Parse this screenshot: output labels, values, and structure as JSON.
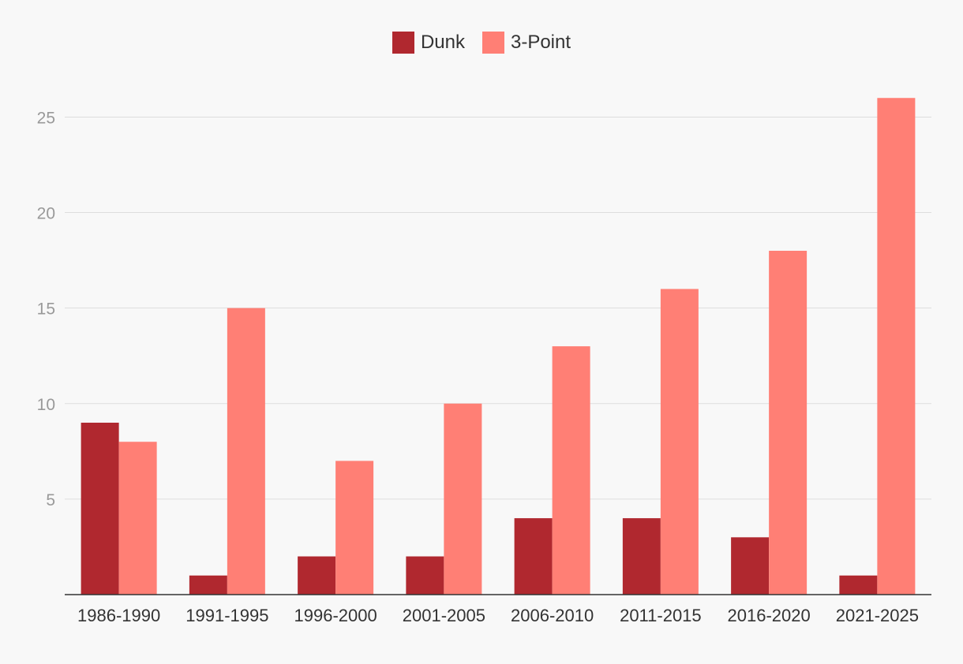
{
  "chart_data": {
    "type": "bar",
    "title": "",
    "xlabel": "",
    "ylabel": "",
    "categories": [
      "1986-1990",
      "1991-1995",
      "1996-2000",
      "2001-2005",
      "2006-2010",
      "2011-2015",
      "2016-2020",
      "2021-2025"
    ],
    "series": [
      {
        "name": "Dunk",
        "color": "#b0282f",
        "values": [
          9,
          1,
          2,
          2,
          4,
          4,
          3,
          1
        ]
      },
      {
        "name": "3-Point",
        "color": "#ff7f75",
        "values": [
          8,
          15,
          7,
          10,
          13,
          16,
          18,
          26
        ]
      }
    ],
    "ylim": [
      0,
      27
    ],
    "yticks": [
      5,
      10,
      15,
      20,
      25
    ],
    "grid": true,
    "legend_position": "top-center"
  }
}
